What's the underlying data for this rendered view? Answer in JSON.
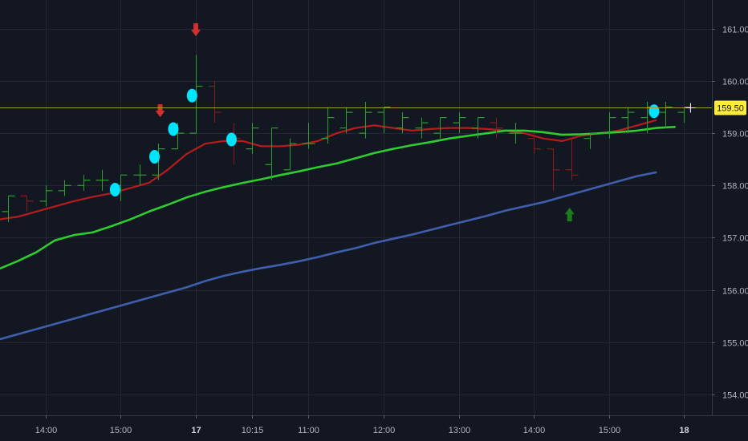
{
  "chart_data": {
    "type": "line",
    "background": "#131722",
    "ylim": [
      153.6,
      161.55
    ],
    "y_ticks": [
      {
        "value": 161,
        "label": "161.00"
      },
      {
        "value": 160,
        "label": "160.00"
      },
      {
        "value": 159,
        "label": "159.00"
      },
      {
        "value": 158,
        "label": "158.00"
      },
      {
        "value": 157,
        "label": "157.00"
      },
      {
        "value": 156,
        "label": "156.00"
      },
      {
        "value": 155,
        "label": "155.00"
      },
      {
        "value": 154,
        "label": "154.00"
      }
    ],
    "x_ticks": [
      {
        "index": 2,
        "label": "14:00",
        "bold": false
      },
      {
        "index": 6,
        "label": "15:00",
        "bold": false
      },
      {
        "index": 10,
        "label": "17",
        "bold": true
      },
      {
        "index": 13,
        "label": "10:15",
        "bold": false
      },
      {
        "index": 16,
        "label": "11:00",
        "bold": false
      },
      {
        "index": 20,
        "label": "12:00",
        "bold": false
      },
      {
        "index": 24,
        "label": "13:00",
        "bold": false
      },
      {
        "index": 28,
        "label": "14:00",
        "bold": false
      },
      {
        "index": 32,
        "label": "15:00",
        "bold": false
      },
      {
        "index": 36,
        "label": "18",
        "bold": true
      }
    ],
    "last_price": {
      "value": 159.5,
      "label": "159.50",
      "color": "#ffeb3b",
      "line_color": "#9e9d24"
    },
    "bar_colors": {
      "up": "#2e9e2e",
      "down": "#8b1a1a"
    },
    "bars": [
      {
        "o": 157.5,
        "h": 157.8,
        "l": 157.3,
        "c": 157.8
      },
      {
        "o": 157.8,
        "h": 157.8,
        "l": 157.5,
        "c": 157.7
      },
      {
        "o": 157.7,
        "h": 158.0,
        "l": 157.6,
        "c": 157.9
      },
      {
        "o": 157.9,
        "h": 158.1,
        "l": 157.8,
        "c": 158.0
      },
      {
        "o": 158.0,
        "h": 158.2,
        "l": 157.9,
        "c": 158.1
      },
      {
        "o": 158.1,
        "h": 158.3,
        "l": 157.9,
        "c": 158.1
      },
      {
        "o": 158.0,
        "h": 158.2,
        "l": 157.7,
        "c": 158.2
      },
      {
        "o": 158.2,
        "h": 158.4,
        "l": 158.0,
        "c": 158.2
      },
      {
        "o": 158.2,
        "h": 158.8,
        "l": 158.1,
        "c": 158.7
      },
      {
        "o": 158.7,
        "h": 159.2,
        "l": 158.7,
        "c": 159.0
      },
      {
        "o": 159.0,
        "h": 160.5,
        "l": 159.0,
        "c": 159.9
      },
      {
        "o": 159.9,
        "h": 160.0,
        "l": 159.2,
        "c": 159.4
      },
      {
        "o": 159.0,
        "h": 159.2,
        "l": 158.4,
        "c": 158.9
      },
      {
        "o": 158.7,
        "h": 159.2,
        "l": 158.6,
        "c": 159.1
      },
      {
        "o": 158.4,
        "h": 159.1,
        "l": 158.1,
        "c": 159.1
      },
      {
        "o": 158.3,
        "h": 158.9,
        "l": 158.3,
        "c": 158.8
      },
      {
        "o": 158.8,
        "h": 159.2,
        "l": 158.7,
        "c": 158.8
      },
      {
        "o": 158.9,
        "h": 159.5,
        "l": 158.8,
        "c": 159.3
      },
      {
        "o": 159.1,
        "h": 159.5,
        "l": 159.0,
        "c": 159.4
      },
      {
        "o": 159.0,
        "h": 159.6,
        "l": 158.9,
        "c": 159.4
      },
      {
        "o": 159.4,
        "h": 159.5,
        "l": 159.0,
        "c": 159.5
      },
      {
        "o": 159.1,
        "h": 159.4,
        "l": 159.0,
        "c": 159.3
      },
      {
        "o": 159.1,
        "h": 159.3,
        "l": 158.9,
        "c": 159.2
      },
      {
        "o": 159.0,
        "h": 159.3,
        "l": 158.9,
        "c": 159.3
      },
      {
        "o": 159.2,
        "h": 159.4,
        "l": 159.0,
        "c": 159.3
      },
      {
        "o": 159.1,
        "h": 159.3,
        "l": 158.9,
        "c": 159.3
      },
      {
        "o": 159.2,
        "h": 159.3,
        "l": 158.9,
        "c": 159.1
      },
      {
        "o": 159.0,
        "h": 159.2,
        "l": 158.8,
        "c": 159.0
      },
      {
        "o": 158.9,
        "h": 159.0,
        "l": 158.6,
        "c": 158.7
      },
      {
        "o": 158.7,
        "h": 158.7,
        "l": 157.9,
        "c": 158.3
      },
      {
        "o": 158.3,
        "h": 158.9,
        "l": 158.1,
        "c": 158.2
      },
      {
        "o": 158.9,
        "h": 159.0,
        "l": 158.7,
        "c": 159.0
      },
      {
        "o": 159.0,
        "h": 159.4,
        "l": 158.9,
        "c": 159.3
      },
      {
        "o": 159.3,
        "h": 159.5,
        "l": 159.0,
        "c": 159.4
      },
      {
        "o": 159.3,
        "h": 159.6,
        "l": 159.0,
        "c": 159.5
      },
      {
        "o": 159.4,
        "h": 159.6,
        "l": 159.1,
        "c": 159.5
      },
      {
        "o": 159.4,
        "h": 159.5,
        "l": 159.2,
        "c": 159.5
      }
    ],
    "series": [
      {
        "color": "#b71c1c",
        "width": 2.2,
        "points": [
          [
            -0.5,
            157.35
          ],
          [
            0.5,
            157.4
          ],
          [
            1.5,
            157.5
          ],
          [
            2.5,
            157.6
          ],
          [
            3.5,
            157.7
          ],
          [
            4.5,
            157.78
          ],
          [
            5.5,
            157.85
          ],
          [
            6.5,
            157.95
          ],
          [
            7.5,
            158.05
          ],
          [
            8.5,
            158.3
          ],
          [
            9.5,
            158.6
          ],
          [
            10.5,
            158.8
          ],
          [
            11.5,
            158.85
          ],
          [
            12.5,
            158.85
          ],
          [
            13.5,
            158.75
          ],
          [
            14.5,
            158.75
          ],
          [
            15.5,
            158.78
          ],
          [
            16.5,
            158.85
          ],
          [
            17.5,
            159.0
          ],
          [
            18.5,
            159.1
          ],
          [
            19.5,
            159.15
          ],
          [
            20.5,
            159.1
          ],
          [
            21.5,
            159.05
          ],
          [
            22.5,
            159.08
          ],
          [
            23.5,
            159.1
          ],
          [
            24.5,
            159.1
          ],
          [
            25.5,
            159.08
          ],
          [
            26.5,
            159.05
          ],
          [
            27.5,
            159.0
          ],
          [
            28.5,
            158.9
          ],
          [
            29.5,
            158.85
          ],
          [
            30.5,
            158.95
          ],
          [
            31.5,
            159.0
          ],
          [
            32.5,
            159.05
          ],
          [
            33.5,
            159.15
          ],
          [
            34.5,
            159.25
          ]
        ]
      },
      {
        "color": "#2ecc2e",
        "width": 2.6,
        "points": [
          [
            -0.5,
            156.4
          ],
          [
            0.5,
            156.55
          ],
          [
            1.5,
            156.72
          ],
          [
            2.5,
            156.95
          ],
          [
            3.5,
            157.05
          ],
          [
            4.5,
            157.1
          ],
          [
            5.5,
            157.22
          ],
          [
            6.5,
            157.35
          ],
          [
            7.5,
            157.5
          ],
          [
            8.5,
            157.63
          ],
          [
            9.5,
            157.77
          ],
          [
            10.5,
            157.88
          ],
          [
            11.5,
            157.97
          ],
          [
            12.5,
            158.05
          ],
          [
            13.5,
            158.12
          ],
          [
            14.5,
            158.2
          ],
          [
            15.5,
            158.27
          ],
          [
            16.5,
            158.35
          ],
          [
            17.5,
            158.42
          ],
          [
            18.5,
            158.52
          ],
          [
            19.5,
            158.62
          ],
          [
            20.5,
            158.7
          ],
          [
            21.5,
            158.77
          ],
          [
            22.5,
            158.83
          ],
          [
            23.5,
            158.9
          ],
          [
            24.5,
            158.95
          ],
          [
            25.5,
            159.0
          ],
          [
            26.5,
            159.05
          ],
          [
            27.5,
            159.05
          ],
          [
            28.5,
            159.02
          ],
          [
            29.5,
            158.97
          ],
          [
            30.5,
            158.98
          ],
          [
            31.5,
            159.0
          ],
          [
            32.5,
            159.02
          ],
          [
            33.5,
            159.05
          ],
          [
            34.5,
            159.1
          ],
          [
            35.5,
            159.12
          ]
        ]
      },
      {
        "color": "#3f5fad",
        "width": 2.6,
        "points": [
          [
            -0.5,
            155.05
          ],
          [
            0.5,
            155.15
          ],
          [
            1.5,
            155.25
          ],
          [
            2.5,
            155.35
          ],
          [
            3.5,
            155.45
          ],
          [
            4.5,
            155.55
          ],
          [
            5.5,
            155.65
          ],
          [
            6.5,
            155.75
          ],
          [
            7.5,
            155.85
          ],
          [
            8.5,
            155.95
          ],
          [
            9.5,
            156.05
          ],
          [
            10.5,
            156.17
          ],
          [
            11.5,
            156.27
          ],
          [
            12.5,
            156.35
          ],
          [
            13.5,
            156.42
          ],
          [
            14.5,
            156.48
          ],
          [
            15.5,
            156.55
          ],
          [
            16.5,
            156.63
          ],
          [
            17.5,
            156.72
          ],
          [
            18.5,
            156.8
          ],
          [
            19.5,
            156.9
          ],
          [
            20.5,
            156.98
          ],
          [
            21.5,
            157.06
          ],
          [
            22.5,
            157.15
          ],
          [
            23.5,
            157.24
          ],
          [
            24.5,
            157.33
          ],
          [
            25.5,
            157.42
          ],
          [
            26.5,
            157.52
          ],
          [
            27.5,
            157.6
          ],
          [
            28.5,
            157.68
          ],
          [
            29.5,
            157.78
          ],
          [
            30.5,
            157.88
          ],
          [
            31.5,
            157.98
          ],
          [
            32.5,
            158.08
          ],
          [
            33.5,
            158.18
          ],
          [
            34.5,
            158.25
          ]
        ]
      }
    ],
    "signals": {
      "dots": [
        {
          "index": 5.7,
          "value": 157.92
        },
        {
          "index": 7.8,
          "value": 158.55
        },
        {
          "index": 8.8,
          "value": 159.08
        },
        {
          "index": 9.8,
          "value": 159.72
        },
        {
          "index": 11.9,
          "value": 158.88
        },
        {
          "index": 34.4,
          "value": 159.42
        }
      ],
      "dot_color": "#00e5ff",
      "sell_arrows": [
        {
          "index": 8.1,
          "value": 159.4
        },
        {
          "index": 10.0,
          "value": 160.95
        }
      ],
      "sell_color": "#d32f2f",
      "buy_arrows": [
        {
          "index": 29.9,
          "value": 157.45
        }
      ],
      "buy_color": "#1b7e1b"
    }
  }
}
